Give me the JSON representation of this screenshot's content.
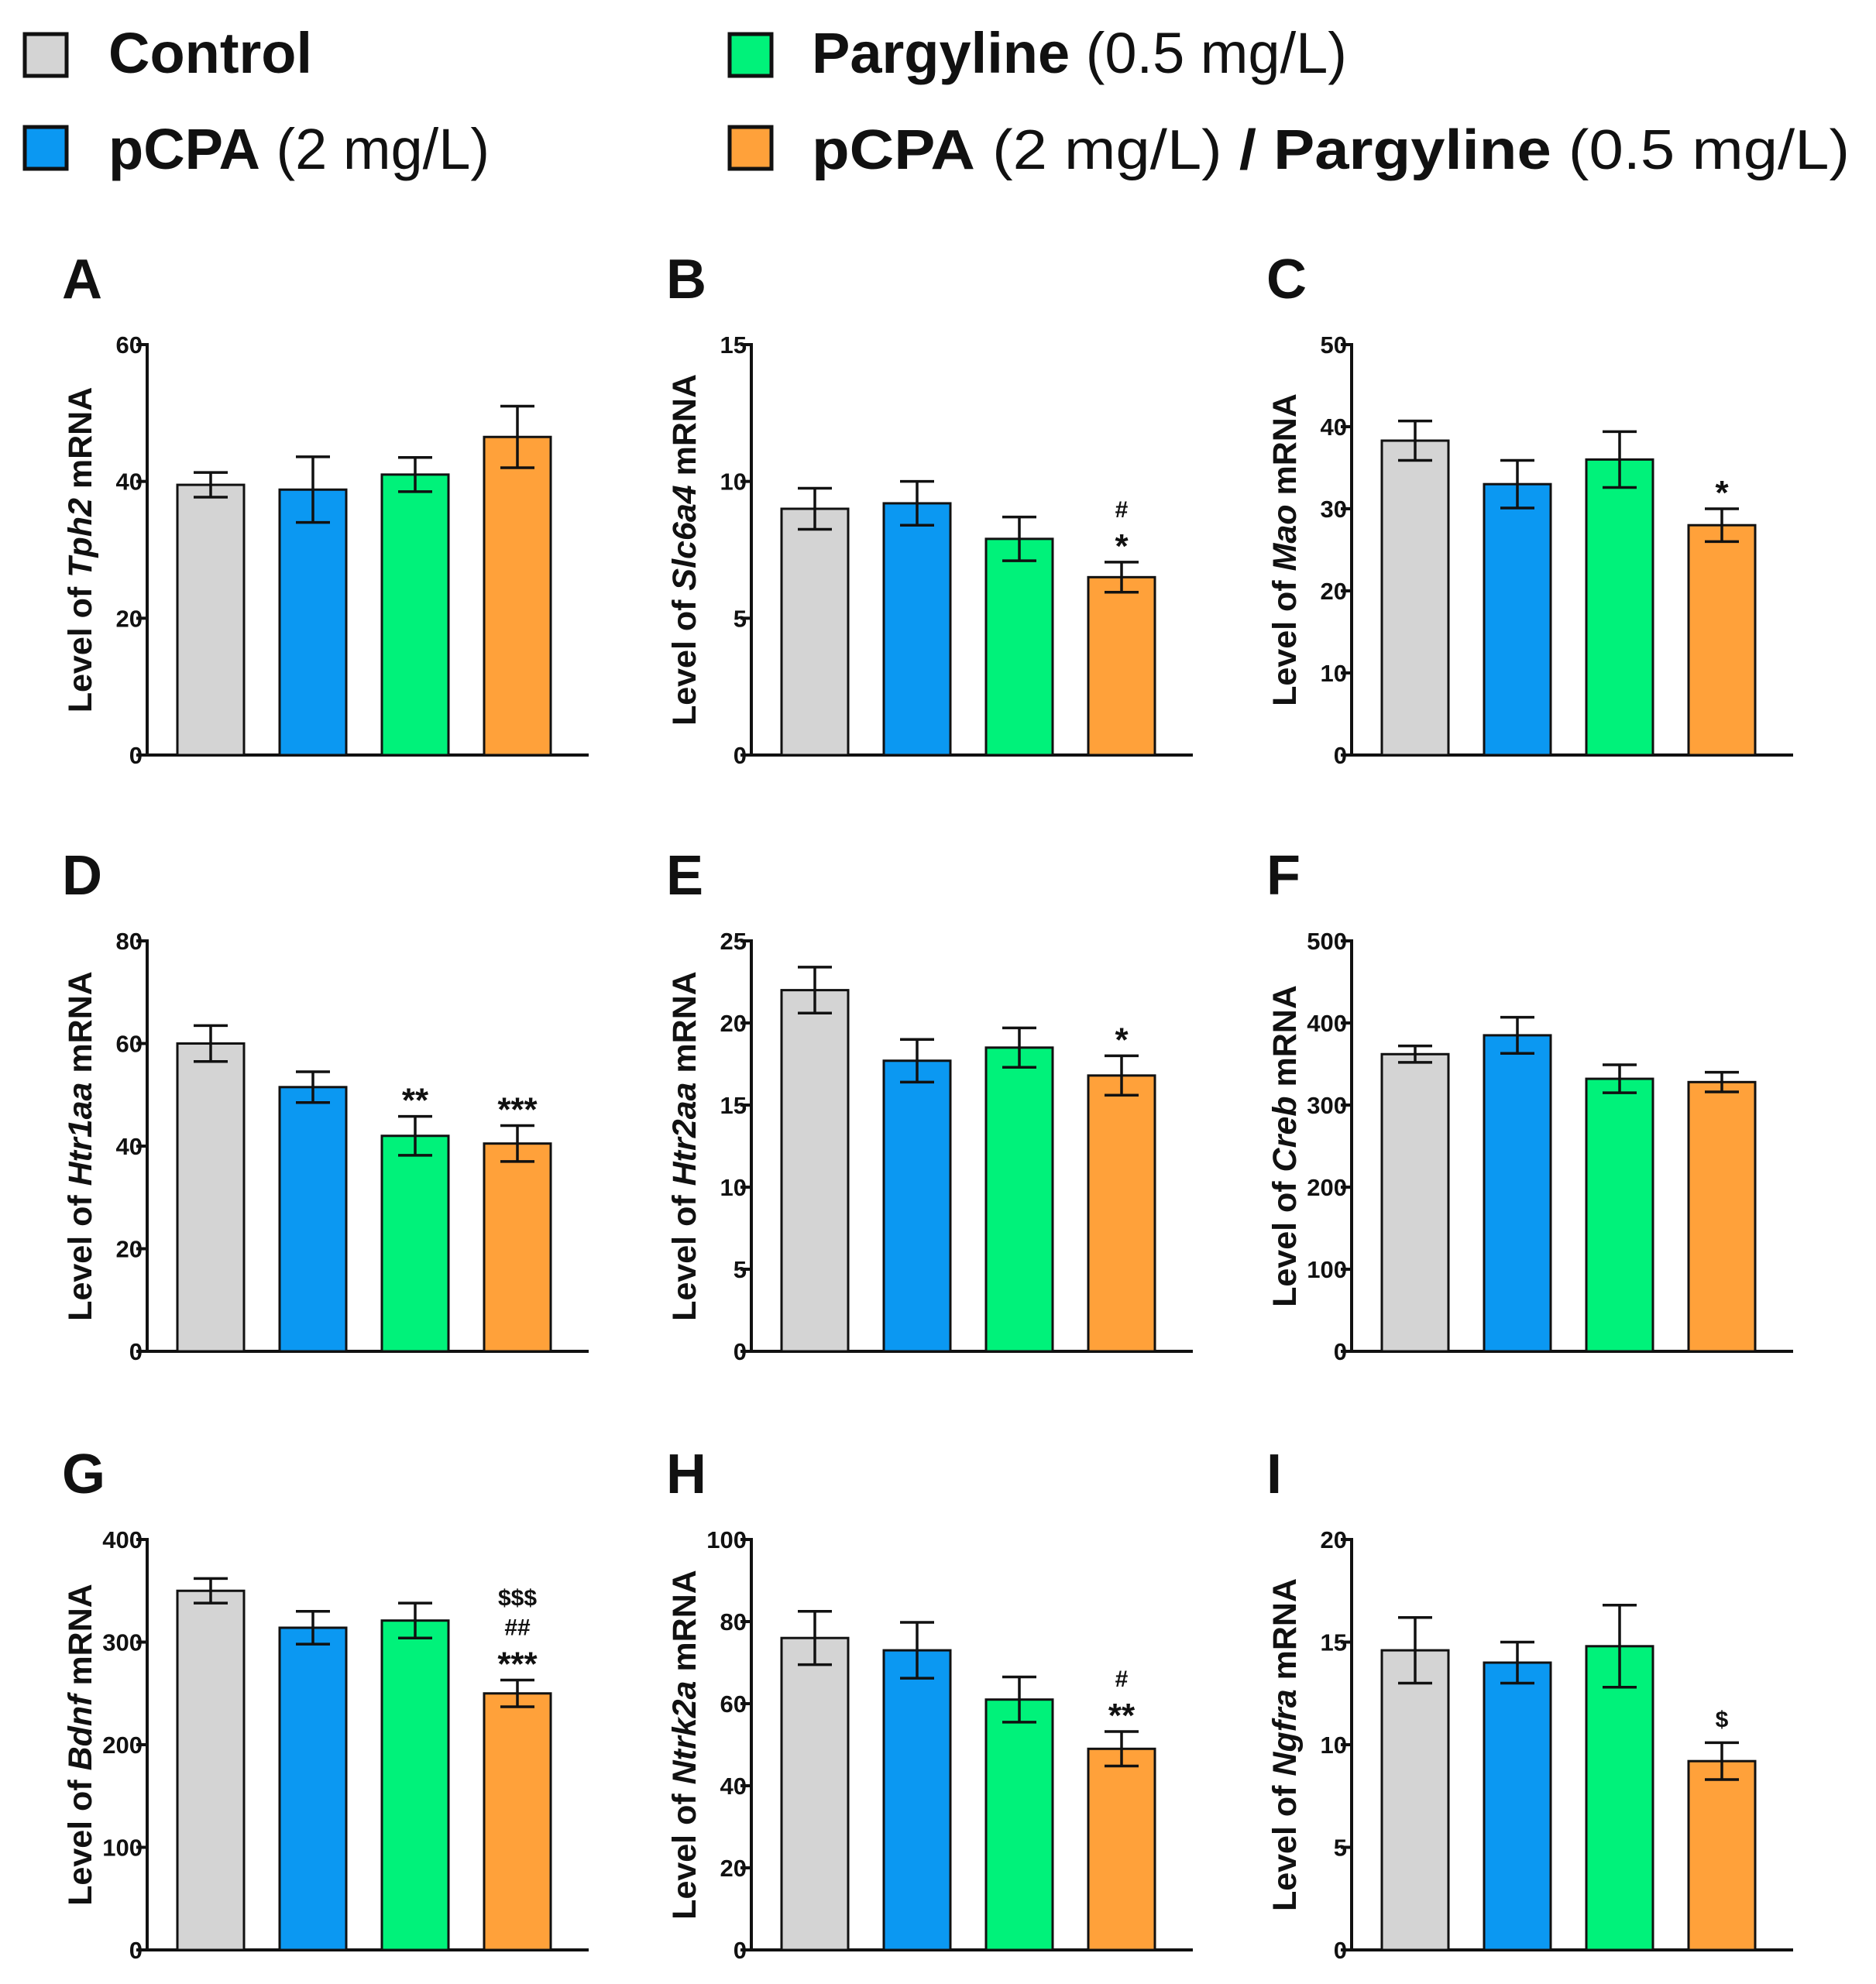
{
  "legend": {
    "items": [
      {
        "bold": "Control",
        "rest": "",
        "color": "#d4d4d4"
      },
      {
        "bold": "pCPA",
        "rest": " (2 mg/L)",
        "color": "#0b98f2"
      },
      {
        "bold": "Pargyline",
        "rest": " (0.5 mg/L)",
        "color": "#00f27a"
      },
      {
        "bold": "pCPA",
        "rest": " (2 mg/L) ",
        "bold2": "/ Pargyline",
        "rest2": " (0.5 mg/L)",
        "color": "#ffa13a"
      }
    ]
  },
  "ylabel_prefix": "Level of ",
  "ylabel_suffix": " mRNA",
  "chart_data": [
    {
      "panel": "A",
      "type": "bar",
      "gene": "Tph2",
      "ylim": [
        0,
        60
      ],
      "ticks": [
        "0",
        "20",
        "40",
        "60"
      ],
      "categories": [
        "Control",
        "pCPA (2 mg/L)",
        "Pargyline (0.5 mg/L)",
        "pCPA (2 mg/L) / Pargyline (0.5 mg/L)"
      ],
      "values": [
        39.5,
        38.8,
        41.0,
        46.5
      ],
      "errors": [
        1.8,
        4.8,
        2.5,
        4.5
      ],
      "annotations": [
        [],
        [],
        [],
        []
      ]
    },
    {
      "panel": "B",
      "type": "bar",
      "gene": "Slc6a4",
      "ylim": [
        0,
        15
      ],
      "ticks": [
        "0",
        "5",
        "10",
        "15"
      ],
      "categories": [
        "Control",
        "pCPA (2 mg/L)",
        "Pargyline (0.5 mg/L)",
        "pCPA (2 mg/L) / Pargyline (0.5 mg/L)"
      ],
      "values": [
        9.0,
        9.2,
        7.9,
        6.5
      ],
      "errors": [
        0.75,
        0.8,
        0.8,
        0.55
      ],
      "annotations": [
        [],
        [],
        [],
        [
          "#",
          "*"
        ]
      ]
    },
    {
      "panel": "C",
      "type": "bar",
      "gene": "Mao",
      "ylim": [
        0,
        50
      ],
      "ticks": [
        "0",
        "10",
        "20",
        "30",
        "40",
        "50"
      ],
      "categories": [
        "Control",
        "pCPA (2 mg/L)",
        "Pargyline (0.5 mg/L)",
        "pCPA (2 mg/L) / Pargyline (0.5 mg/L)"
      ],
      "values": [
        38.3,
        33.0,
        36.0,
        28.0
      ],
      "errors": [
        2.4,
        2.9,
        3.4,
        2.0
      ],
      "annotations": [
        [],
        [],
        [],
        [
          "*"
        ]
      ]
    },
    {
      "panel": "D",
      "type": "bar",
      "gene": "Htr1aa",
      "ylim": [
        0,
        80
      ],
      "ticks": [
        "0",
        "20",
        "40",
        "60",
        "80"
      ],
      "categories": [
        "Control",
        "pCPA (2 mg/L)",
        "Pargyline (0.5 mg/L)",
        "pCPA (2 mg/L) / Pargyline (0.5 mg/L)"
      ],
      "values": [
        60.0,
        51.5,
        42.0,
        40.5
      ],
      "errors": [
        3.5,
        3.0,
        3.8,
        3.5
      ],
      "annotations": [
        [],
        [],
        [
          "**"
        ],
        [
          "***"
        ]
      ]
    },
    {
      "panel": "E",
      "type": "bar",
      "gene": "Htr2aa",
      "ylim": [
        0,
        25
      ],
      "ticks": [
        "0",
        "5",
        "10",
        "15",
        "20",
        "25"
      ],
      "categories": [
        "Control",
        "pCPA (2 mg/L)",
        "Pargyline (0.5 mg/L)",
        "pCPA (2 mg/L) / Pargyline (0.5 mg/L)"
      ],
      "values": [
        22.0,
        17.7,
        18.5,
        16.8
      ],
      "errors": [
        1.4,
        1.3,
        1.2,
        1.2
      ],
      "annotations": [
        [],
        [],
        [],
        [
          "*"
        ]
      ]
    },
    {
      "panel": "F",
      "type": "bar",
      "gene": "Creb",
      "ylim": [
        0,
        500
      ],
      "ticks": [
        "0",
        "100",
        "200",
        "300",
        "400",
        "500"
      ],
      "categories": [
        "Control",
        "pCPA (2 mg/L)",
        "Pargyline (0.5 mg/L)",
        "pCPA (2 mg/L) / Pargyline (0.5 mg/L)"
      ],
      "values": [
        362,
        385,
        332,
        328
      ],
      "errors": [
        10,
        22,
        17,
        12
      ],
      "annotations": [
        [],
        [],
        [],
        []
      ]
    },
    {
      "panel": "G",
      "type": "bar",
      "gene": "Bdnf",
      "ylim": [
        0,
        400
      ],
      "ticks": [
        "0",
        "100",
        "200",
        "300",
        "400"
      ],
      "categories": [
        "Control",
        "pCPA (2 mg/L)",
        "Pargyline (0.5 mg/L)",
        "pCPA (2 mg/L) / Pargyline (0.5 mg/L)"
      ],
      "values": [
        350,
        314,
        321,
        250
      ],
      "errors": [
        12,
        16,
        17,
        13
      ],
      "annotations": [
        [],
        [],
        [],
        [
          "$$$",
          "##",
          "***"
        ]
      ]
    },
    {
      "panel": "H",
      "type": "bar",
      "gene": "Ntrk2a",
      "ylim": [
        0,
        100
      ],
      "ticks": [
        "0",
        "20",
        "40",
        "60",
        "80",
        "100"
      ],
      "categories": [
        "Control",
        "pCPA (2 mg/L)",
        "Pargyline (0.5 mg/L)",
        "pCPA (2 mg/L) / Pargyline (0.5 mg/L)"
      ],
      "values": [
        76,
        73,
        61,
        49
      ],
      "errors": [
        6.5,
        6.8,
        5.5,
        4.2
      ],
      "annotations": [
        [],
        [],
        [],
        [
          "#",
          "**"
        ]
      ]
    },
    {
      "panel": "I",
      "type": "bar",
      "gene": "Ngfra",
      "ylim": [
        0,
        20
      ],
      "ticks": [
        "0",
        "5",
        "10",
        "15",
        "20"
      ],
      "categories": [
        "Control",
        "pCPA (2 mg/L)",
        "Pargyline (0.5 mg/L)",
        "pCPA (2 mg/L) / Pargyline (0.5 mg/L)"
      ],
      "values": [
        14.6,
        14.0,
        14.8,
        9.2
      ],
      "errors": [
        1.6,
        1.0,
        2.0,
        0.9
      ],
      "annotations": [
        [],
        [],
        [],
        [
          "$"
        ]
      ]
    }
  ]
}
